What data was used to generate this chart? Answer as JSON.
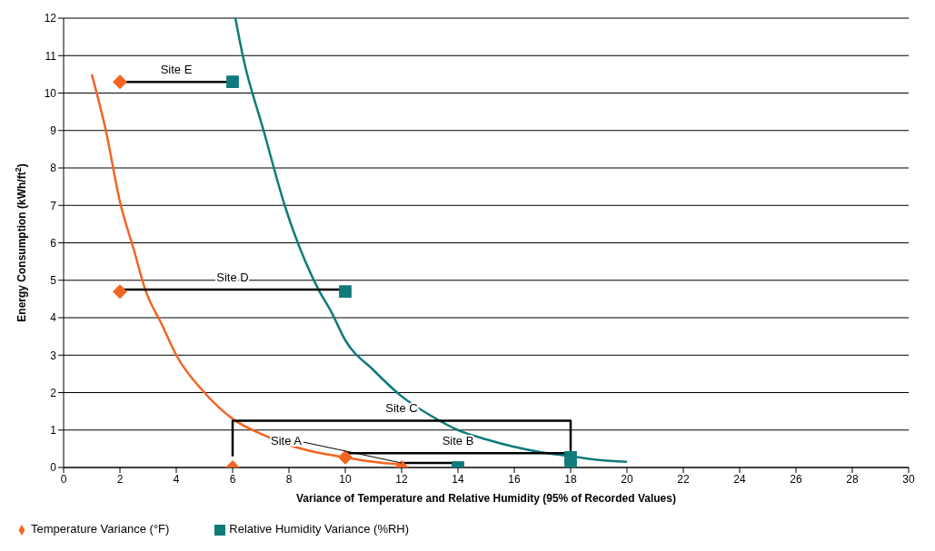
{
  "chart_data": {
    "type": "scatter",
    "xlabel": "Variance of Temperature and Relative Humidity (95% of Recorded Values)",
    "ylabel": "Energy Consumption (kWh/ft$^{2}$)",
    "xlim": [
      0,
      30
    ],
    "xticks": [
      0,
      2,
      4,
      6,
      8,
      10,
      12,
      14,
      16,
      18,
      20,
      22,
      24,
      26,
      28,
      30
    ],
    "ylim": [
      0,
      12
    ],
    "yticks": [
      0,
      1,
      2,
      3,
      4,
      5,
      6,
      7,
      8,
      9,
      10,
      11,
      12
    ],
    "grid": "y",
    "legend": "bottom left",
    "series": [
      {
        "type": "line",
        "color": "#f26522",
        "marker": "none",
        "line_style": "solid",
        "x": [
          1,
          1.5,
          2,
          2.5,
          2.9,
          3.5,
          4,
          5,
          6,
          7,
          8,
          9,
          10,
          11,
          12
        ],
        "values": [
          10.5,
          9.0,
          7.1,
          5.8,
          4.75,
          3.8,
          3.0,
          2.0,
          1.3,
          0.9,
          0.6,
          0.4,
          0.27,
          0.15,
          0.08
        ]
      },
      {
        "type": "line",
        "color": "#0f7b7b",
        "marker": "none",
        "line_style": "solid",
        "x": [
          6.1,
          6.36,
          7.1,
          7.85,
          9.05,
          9.5,
          10,
          11,
          12,
          13,
          14,
          15,
          16,
          17,
          18,
          19,
          20
        ],
        "values": [
          12,
          11,
          9,
          7,
          4.75,
          4.16,
          3.4,
          2.6,
          1.9,
          1.4,
          1.0,
          0.75,
          0.55,
          0.4,
          0.3,
          0.2,
          0.15
        ]
      },
      {
        "type": "line",
        "color": "#000000",
        "marker": "none",
        "line_style": "solid",
        "x": [
          2,
          6
        ],
        "values": [
          10.3,
          10.3
        ]
      },
      {
        "type": "line",
        "color": "#000000",
        "marker": "none",
        "line_style": "solid",
        "x": [
          2,
          10
        ],
        "values": [
          4.75,
          4.75
        ]
      },
      {
        "type": "line",
        "color": "#000000",
        "marker": "none",
        "line_style": "solid",
        "x": [
          6,
          6,
          18,
          18
        ],
        "values": [
          0.3,
          1.25,
          1.25,
          0.3
        ]
      },
      {
        "type": "line",
        "color": "#000000",
        "marker": "none",
        "line_style": "solid",
        "x": [
          10,
          18
        ],
        "values": [
          0.38,
          0.38
        ]
      },
      {
        "type": "line",
        "color": "#000000",
        "marker": "none",
        "line_style": "solid",
        "x": [
          12,
          14
        ],
        "values": [
          0.12,
          0.12
        ]
      },
      {
        "type": "scatter",
        "name": "Temperature Variance (°F)",
        "color": "#f26522",
        "marker": "diamond",
        "x": [
          2,
          2,
          6,
          10,
          12
        ],
        "values": [
          10.3,
          4.7,
          0,
          0.27,
          0
        ]
      },
      {
        "type": "scatter",
        "name": "Relative Humidity Variance (%RH)",
        "color": "#0f7b7b",
        "marker": "square",
        "x": [
          6,
          10,
          14,
          18,
          18
        ],
        "values": [
          10.3,
          4.7,
          0,
          0.27,
          0
        ]
      }
    ],
    "annotations": [
      {
        "text": "Site E",
        "x": 4,
        "y": 10.3
      },
      {
        "text": "Site D",
        "x": 6,
        "y": 4.75
      },
      {
        "text": "Site C",
        "x": 12,
        "y": 1.25
      },
      {
        "text": "Site B",
        "x": 14,
        "y": 0.38
      },
      {
        "text": "Site A",
        "x": 12,
        "y": 0.12
      }
    ]
  }
}
